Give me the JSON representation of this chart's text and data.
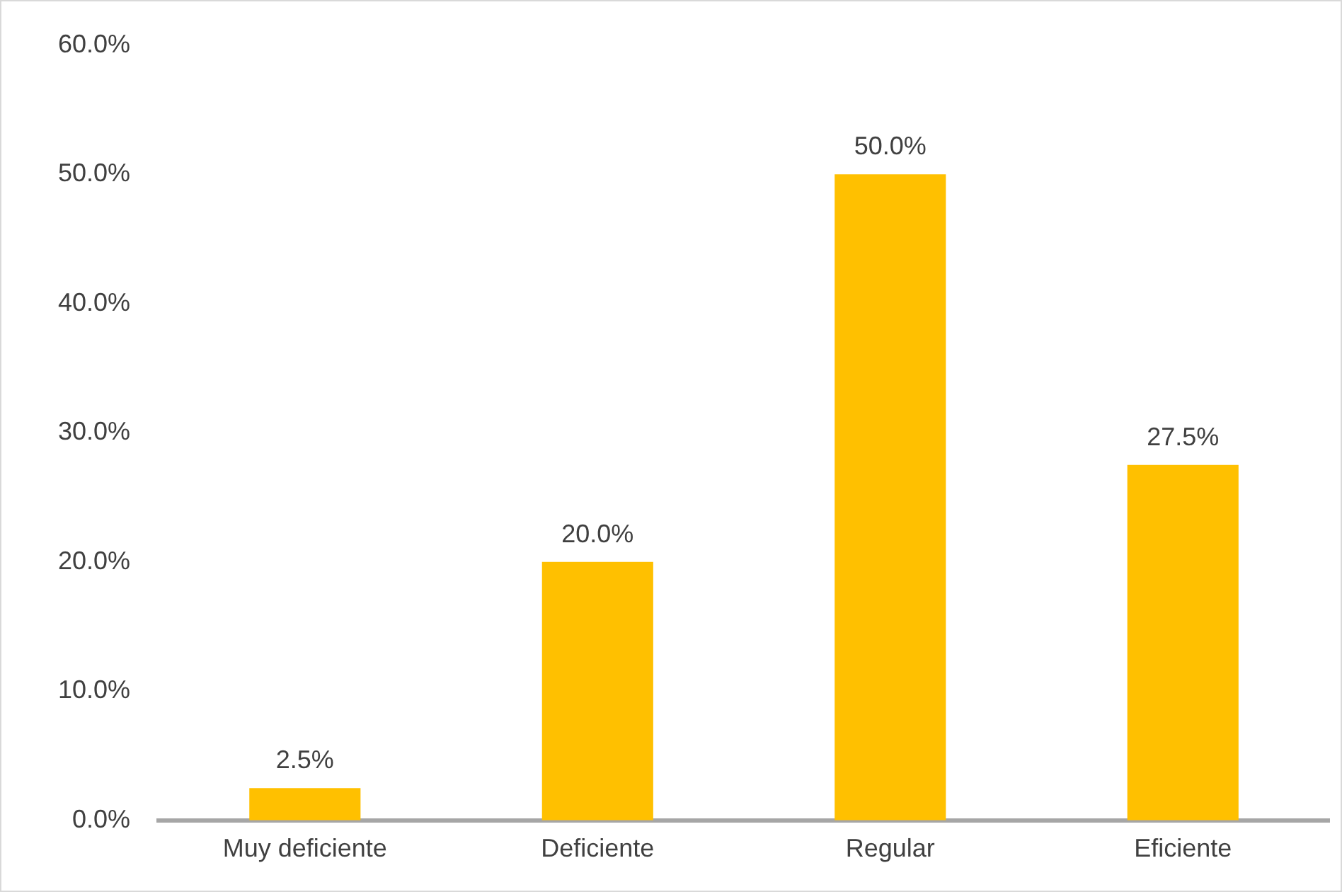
{
  "chart_data": {
    "type": "bar",
    "categories": [
      "Muy deficiente",
      "Deficiente",
      "Regular",
      "Eficiente"
    ],
    "values": [
      2.5,
      20.0,
      50.0,
      27.5
    ],
    "color": "#ffc000",
    "value_labels": [
      "2.5%",
      "20.0%",
      "50.0%",
      "27.5%"
    ],
    "ylim": [
      0,
      60
    ],
    "yticks": [
      {
        "value": 0,
        "label": "0.0%"
      },
      {
        "value": 10,
        "label": "10.0%"
      },
      {
        "value": 20,
        "label": "20.0%"
      },
      {
        "value": 30,
        "label": "30.0%"
      },
      {
        "value": 40,
        "label": "40.0%"
      },
      {
        "value": 50,
        "label": "50.0%"
      },
      {
        "value": 60,
        "label": "60.0%"
      }
    ],
    "grid": false,
    "legend": false
  }
}
